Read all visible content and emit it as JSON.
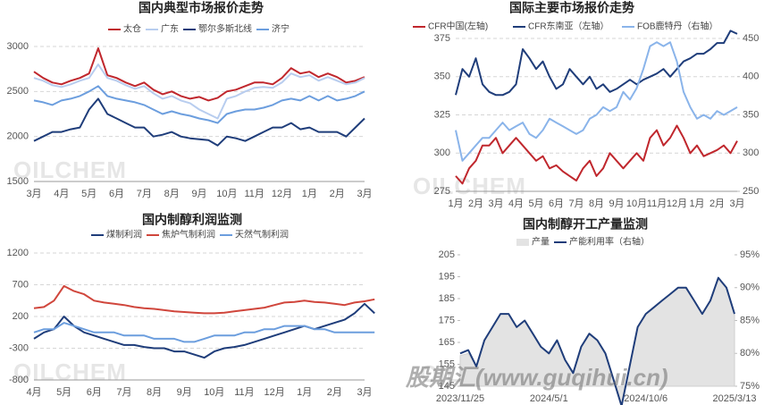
{
  "chart_data": [
    {
      "type": "line",
      "title": "国内典型市场报价走势",
      "watermark": "OILCHEM",
      "categories": [
        "3月",
        null,
        null,
        "4月",
        null,
        null,
        "5月",
        null,
        null,
        "6月",
        null,
        null,
        "7月",
        null,
        null,
        "8月",
        null,
        null,
        "9月",
        null,
        null,
        "10月",
        null,
        null,
        "11月",
        null,
        null,
        "12月",
        null,
        null,
        "1月",
        null,
        null,
        "2月",
        null,
        null,
        "3月"
      ],
      "ylim": [
        1500,
        3000
      ],
      "yticks": [
        1500,
        2000,
        2500,
        3000
      ],
      "grid": true,
      "series": [
        {
          "name": "太仓",
          "color": "#c0272d",
          "values": [
            2720,
            2650,
            2600,
            2580,
            2620,
            2650,
            2700,
            2980,
            2680,
            2650,
            2600,
            2560,
            2600,
            2520,
            2470,
            2500,
            2450,
            2420,
            2440,
            2400,
            2430,
            2500,
            2520,
            2560,
            2600,
            2600,
            2580,
            2650,
            2760,
            2700,
            2720,
            2660,
            2700,
            2660,
            2600,
            2620,
            2660
          ]
        },
        {
          "name": "广东",
          "color": "#b8cdef",
          "values": [
            2650,
            2620,
            2570,
            2550,
            2580,
            2620,
            2650,
            2800,
            2650,
            2620,
            2570,
            2530,
            2560,
            2480,
            2420,
            2450,
            2400,
            2370,
            2300,
            2250,
            2200,
            2420,
            2450,
            2500,
            2540,
            2550,
            2540,
            2600,
            2700,
            2660,
            2680,
            2620,
            2660,
            2620,
            2580,
            2600,
            2650
          ]
        },
        {
          "name": "鄂尔多斯北线",
          "color": "#1f3d7a",
          "values": [
            1950,
            2000,
            2050,
            2050,
            2080,
            2100,
            2300,
            2420,
            2250,
            2200,
            2150,
            2100,
            2100,
            2000,
            2020,
            2050,
            2000,
            1980,
            1970,
            1960,
            1900,
            2000,
            1980,
            1950,
            2000,
            2050,
            2100,
            2100,
            2150,
            2080,
            2100,
            2050,
            2050,
            2050,
            2000,
            2100,
            2200
          ]
        },
        {
          "name": "济宁",
          "color": "#6c9ede",
          "values": [
            2400,
            2380,
            2350,
            2400,
            2420,
            2450,
            2500,
            2560,
            2450,
            2420,
            2400,
            2380,
            2350,
            2300,
            2250,
            2280,
            2250,
            2230,
            2200,
            2180,
            2150,
            2250,
            2280,
            2300,
            2300,
            2320,
            2350,
            2400,
            2420,
            2400,
            2450,
            2400,
            2450,
            2400,
            2420,
            2450,
            2500
          ]
        }
      ]
    },
    {
      "type": "line",
      "title": "国际主要市场报价走势",
      "watermark": "OILCHEM",
      "categories": [
        "1月",
        null,
        null,
        "2月",
        null,
        null,
        "3月",
        null,
        null,
        "4月",
        null,
        null,
        "5月",
        null,
        null,
        "6月",
        null,
        null,
        "7月",
        null,
        null,
        "8月",
        null,
        null,
        "9月",
        null,
        null,
        "10月",
        null,
        null,
        "11月",
        null,
        null,
        "12月",
        null,
        null,
        "1月",
        null,
        null,
        "2月",
        null,
        null,
        "3月"
      ],
      "ylim": [
        275,
        375
      ],
      "yticks": [
        275,
        300,
        325,
        350,
        375
      ],
      "y2lim": [
        250,
        450
      ],
      "y2ticks": [
        250,
        300,
        350,
        400,
        450
      ],
      "grid": true,
      "series": [
        {
          "name": "CFR中国(左轴)",
          "color": "#c0272d",
          "values": [
            285,
            280,
            290,
            295,
            305,
            305,
            310,
            300,
            305,
            310,
            305,
            300,
            295,
            298,
            290,
            292,
            288,
            285,
            282,
            290,
            295,
            285,
            290,
            300,
            295,
            290,
            295,
            300,
            295,
            310,
            315,
            305,
            310,
            318,
            310,
            300,
            305,
            298,
            300,
            302,
            305,
            300,
            308
          ]
        },
        {
          "name": "CFR东南亚（左轴）",
          "color": "#1f3d7a",
          "values": [
            338,
            355,
            350,
            362,
            345,
            340,
            338,
            338,
            340,
            345,
            368,
            362,
            355,
            360,
            350,
            342,
            345,
            355,
            350,
            345,
            350,
            342,
            345,
            340,
            342,
            345,
            348,
            345,
            348,
            350,
            352,
            355,
            350,
            355,
            360,
            362,
            365,
            365,
            368,
            372,
            372,
            380,
            378
          ]
        },
        {
          "name": "FOB鹿特丹（右轴）",
          "color": "#8ab4ea",
          "axis": "y2",
          "values": [
            330,
            290,
            300,
            310,
            320,
            320,
            330,
            340,
            330,
            335,
            340,
            325,
            320,
            330,
            345,
            340,
            335,
            330,
            325,
            330,
            345,
            350,
            360,
            355,
            360,
            380,
            370,
            385,
            410,
            440,
            445,
            440,
            445,
            420,
            380,
            360,
            345,
            350,
            345,
            355,
            350,
            355,
            360
          ]
        }
      ]
    },
    {
      "type": "line",
      "title": "国内制醇利润监测",
      "watermark": "OILCHEM",
      "categories": [
        "4月",
        null,
        null,
        "5月",
        null,
        null,
        "6月",
        null,
        null,
        "7月",
        null,
        null,
        "8月",
        null,
        null,
        "9月",
        null,
        null,
        "10月",
        null,
        null,
        "11月",
        null,
        null,
        "12月",
        null,
        null,
        "1月",
        null,
        null,
        "2月",
        null,
        null,
        "3月",
        null
      ],
      "ylim": [
        -800,
        1200
      ],
      "yticks": [
        -800,
        -300,
        200,
        700,
        1200
      ],
      "grid": true,
      "series": [
        {
          "name": "煤制利润",
          "color": "#1f3d7a",
          "values": [
            -150,
            -50,
            0,
            200,
            50,
            -50,
            -100,
            -150,
            -200,
            -250,
            -250,
            -280,
            -300,
            -300,
            -350,
            -350,
            -400,
            -450,
            -350,
            -300,
            -280,
            -250,
            -200,
            -150,
            -100,
            -50,
            0,
            50,
            0,
            50,
            100,
            150,
            250,
            400,
            250
          ]
        },
        {
          "name": "焦炉气制利润",
          "color": "#d0463c",
          "values": [
            330,
            350,
            450,
            680,
            600,
            550,
            450,
            420,
            400,
            380,
            350,
            330,
            320,
            300,
            280,
            270,
            260,
            250,
            250,
            260,
            280,
            300,
            320,
            340,
            380,
            420,
            430,
            450,
            430,
            420,
            400,
            380,
            420,
            440,
            470
          ]
        },
        {
          "name": "天然气制利润",
          "color": "#6c9ede",
          "values": [
            -50,
            0,
            0,
            100,
            50,
            0,
            -50,
            -50,
            -50,
            -100,
            -100,
            -100,
            -150,
            -150,
            -150,
            -200,
            -200,
            -150,
            -100,
            -100,
            -100,
            -50,
            -50,
            0,
            0,
            50,
            50,
            50,
            0,
            0,
            -50,
            -50,
            -50,
            -50,
            -50
          ]
        }
      ]
    },
    {
      "type": "line",
      "title": "国内制醇开工产量监测",
      "watermark": "OILCHEM",
      "categories": [
        "2023/11/25",
        null,
        null,
        null,
        null,
        null,
        null,
        null,
        null,
        null,
        null,
        "2024/5/1",
        null,
        null,
        null,
        null,
        null,
        null,
        null,
        null,
        null,
        null,
        null,
        "2024/10/6",
        null,
        null,
        null,
        null,
        null,
        null,
        null,
        null,
        null,
        null,
        "2025/3/13"
      ],
      "ylim": [
        145,
        205
      ],
      "yticks": [
        145,
        155,
        165,
        175,
        185,
        195,
        205
      ],
      "y2lim": [
        75,
        95
      ],
      "y2ticks": [
        {
          "value": 75,
          "label": "75%"
        },
        {
          "value": 80,
          "label": "80%"
        },
        {
          "value": 85,
          "label": "85%"
        },
        {
          "value": 90,
          "label": "90%"
        },
        {
          "value": 95,
          "label": "95%"
        }
      ],
      "grid": false,
      "series": [
        {
          "name": "产量",
          "type": "area",
          "color": "#e3e3e3",
          "values": [
            159,
            160,
            154,
            166,
            172,
            178,
            178,
            172,
            175,
            169,
            163,
            160,
            166,
            157,
            151,
            163,
            169,
            166,
            160,
            148,
            136,
            154,
            172,
            178,
            181,
            184,
            187,
            190,
            190,
            184,
            178,
            184,
            194,
            190,
            178
          ]
        },
        {
          "name": "产能利用率（右轴）",
          "color": "#1f3d7a",
          "axis": "y2",
          "values": [
            80,
            80.5,
            78,
            82,
            84,
            86,
            86,
            84,
            85,
            83,
            81,
            80,
            82,
            79,
            77,
            81,
            83,
            82,
            80,
            76,
            72,
            78,
            84,
            86,
            87,
            88,
            89,
            90,
            90,
            88,
            86,
            88,
            91.5,
            90,
            86
          ]
        }
      ]
    }
  ],
  "overlay": "股期汇(www.guqihui.cn)"
}
